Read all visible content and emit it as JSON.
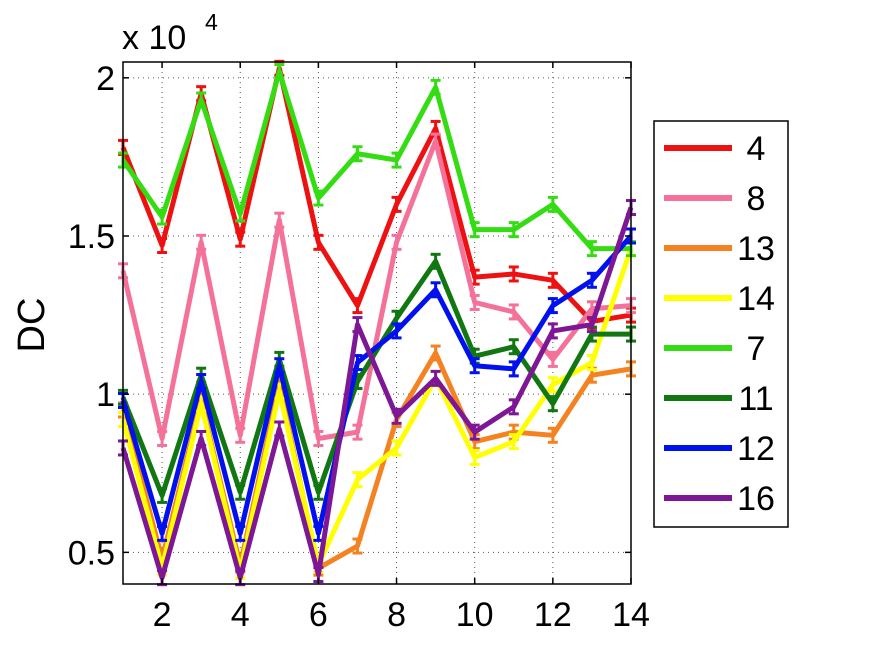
{
  "chart_data": {
    "type": "line",
    "title": "",
    "xlabel": "",
    "ylabel": "DC",
    "y_exponent_label": "x 10",
    "y_exponent_power": "4",
    "xlim": [
      1,
      14
    ],
    "ylim": [
      0.4,
      2.05
    ],
    "x_ticks": [
      2,
      4,
      6,
      8,
      10,
      12,
      14
    ],
    "y_ticks": [
      0.5,
      1,
      1.5,
      2
    ],
    "y_tick_labels": [
      "0.5",
      "1",
      "1.5",
      "2"
    ],
    "grid": true,
    "grid_style": "dotted",
    "legend_position": "right",
    "x": [
      1,
      2,
      3,
      4,
      5,
      6,
      7,
      8,
      9,
      10,
      11,
      12,
      13,
      14
    ],
    "series": [
      {
        "name": "4",
        "color": "#ee1111",
        "values": [
          1.78,
          1.47,
          1.95,
          1.49,
          2.03,
          1.48,
          1.28,
          1.6,
          1.84,
          1.37,
          1.38,
          1.36,
          1.23,
          1.25
        ]
      },
      {
        "name": "8",
        "color": "#f4729a",
        "values": [
          1.39,
          0.86,
          1.48,
          0.87,
          1.55,
          0.86,
          0.88,
          1.48,
          1.8,
          1.29,
          1.26,
          1.11,
          1.27,
          1.28
        ]
      },
      {
        "name": "13",
        "color": "#f58220",
        "values": [
          0.95,
          0.48,
          0.98,
          0.46,
          1.03,
          0.45,
          0.52,
          0.92,
          1.13,
          0.85,
          0.88,
          0.87,
          1.06,
          1.08
        ]
      },
      {
        "name": "14",
        "color": "#ffff00",
        "values": [
          0.92,
          0.45,
          0.97,
          0.44,
          1.01,
          0.46,
          0.73,
          0.83,
          1.05,
          0.8,
          0.85,
          1.03,
          1.1,
          1.46
        ]
      },
      {
        "name": "7",
        "color": "#33dd11",
        "values": [
          1.74,
          1.56,
          1.93,
          1.57,
          2.02,
          1.62,
          1.76,
          1.74,
          1.97,
          1.52,
          1.52,
          1.6,
          1.46,
          1.46
        ]
      },
      {
        "name": "11",
        "color": "#117711",
        "values": [
          0.99,
          0.68,
          1.06,
          0.69,
          1.11,
          0.69,
          1.04,
          1.24,
          1.42,
          1.12,
          1.15,
          0.97,
          1.19,
          1.19
        ]
      },
      {
        "name": "12",
        "color": "#0011ee",
        "values": [
          0.98,
          0.56,
          1.04,
          0.56,
          1.09,
          0.56,
          1.1,
          1.2,
          1.33,
          1.09,
          1.08,
          1.28,
          1.36,
          1.5
        ]
      },
      {
        "name": "16",
        "color": "#7e1796",
        "values": [
          0.83,
          0.42,
          0.86,
          0.42,
          0.89,
          0.43,
          1.22,
          0.93,
          1.05,
          0.88,
          0.96,
          1.2,
          1.22,
          1.59
        ]
      }
    ]
  }
}
